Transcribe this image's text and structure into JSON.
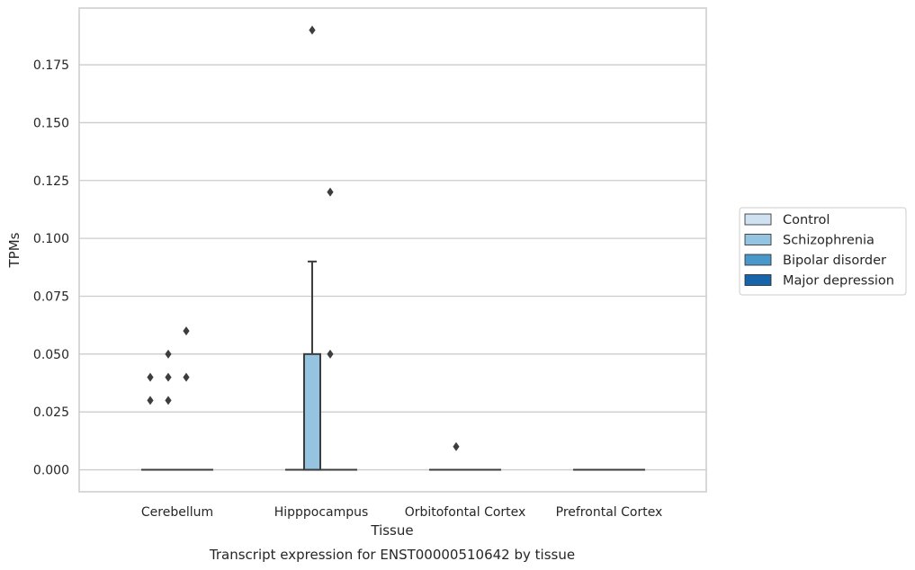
{
  "chart_data": {
    "type": "box",
    "title": "Transcript expression for ENST00000510642 by tissue",
    "xlabel": "Tissue",
    "ylabel": "TPMs",
    "ylim": [
      -0.0095,
      0.1995
    ],
    "yticks": [
      "0.000",
      "0.025",
      "0.050",
      "0.075",
      "0.100",
      "0.125",
      "0.150",
      "0.175"
    ],
    "categories": [
      "Cerebellum",
      "Hipppocampus",
      "Orbitofontal Cortex",
      "Prefrontal Cortex"
    ],
    "grid": true,
    "legend_position": "right",
    "series": [
      {
        "name": "Control",
        "color": "#d0e1f2",
        "boxes": [
          {
            "q1": 0,
            "median": 0,
            "q3": 0,
            "whisker_low": 0,
            "whisker_high": 0,
            "outliers": [
              0.03,
              0.04
            ]
          },
          {
            "q1": 0,
            "median": 0,
            "q3": 0,
            "whisker_low": 0,
            "whisker_high": 0,
            "outliers": []
          },
          {
            "q1": 0,
            "median": 0,
            "q3": 0,
            "whisker_low": 0,
            "whisker_high": 0,
            "outliers": []
          },
          {
            "q1": 0,
            "median": 0,
            "q3": 0,
            "whisker_low": 0,
            "whisker_high": 0,
            "outliers": []
          }
        ]
      },
      {
        "name": "Schizophrenia",
        "color": "#94c4df",
        "boxes": [
          {
            "q1": 0,
            "median": 0,
            "q3": 0,
            "whisker_low": 0,
            "whisker_high": 0,
            "outliers": [
              0.03,
              0.04,
              0.05
            ]
          },
          {
            "q1": 0,
            "median": 0,
            "q3": 0.05,
            "whisker_low": 0,
            "whisker_high": 0.09,
            "outliers": [
              0.19
            ]
          },
          {
            "q1": 0,
            "median": 0,
            "q3": 0,
            "whisker_low": 0,
            "whisker_high": 0,
            "outliers": [
              0.01
            ]
          },
          {
            "q1": 0,
            "median": 0,
            "q3": 0,
            "whisker_low": 0,
            "whisker_high": 0,
            "outliers": []
          }
        ]
      },
      {
        "name": "Bipolar disorder",
        "color": "#4a98c9",
        "boxes": [
          {
            "q1": 0,
            "median": 0,
            "q3": 0,
            "whisker_low": 0,
            "whisker_high": 0,
            "outliers": [
              0.04,
              0.06
            ]
          },
          {
            "q1": 0,
            "median": 0,
            "q3": 0,
            "whisker_low": 0,
            "whisker_high": 0,
            "outliers": [
              0.12,
              0.05
            ]
          },
          {
            "q1": 0,
            "median": 0,
            "q3": 0,
            "whisker_low": 0,
            "whisker_high": 0,
            "outliers": []
          },
          {
            "q1": 0,
            "median": 0,
            "q3": 0,
            "whisker_low": 0,
            "whisker_high": 0,
            "outliers": []
          }
        ]
      },
      {
        "name": "Major depression",
        "color": "#1764ab",
        "boxes": [
          {
            "q1": 0,
            "median": 0,
            "q3": 0,
            "whisker_low": 0,
            "whisker_high": 0,
            "outliers": []
          },
          {
            "q1": 0,
            "median": 0,
            "q3": 0,
            "whisker_low": 0,
            "whisker_high": 0,
            "outliers": []
          },
          {
            "q1": 0,
            "median": 0,
            "q3": 0,
            "whisker_low": 0,
            "whisker_high": 0,
            "outliers": []
          },
          {
            "q1": 0,
            "median": 0,
            "q3": 0,
            "whisker_low": 0,
            "whisker_high": 0,
            "outliers": []
          }
        ]
      }
    ]
  }
}
